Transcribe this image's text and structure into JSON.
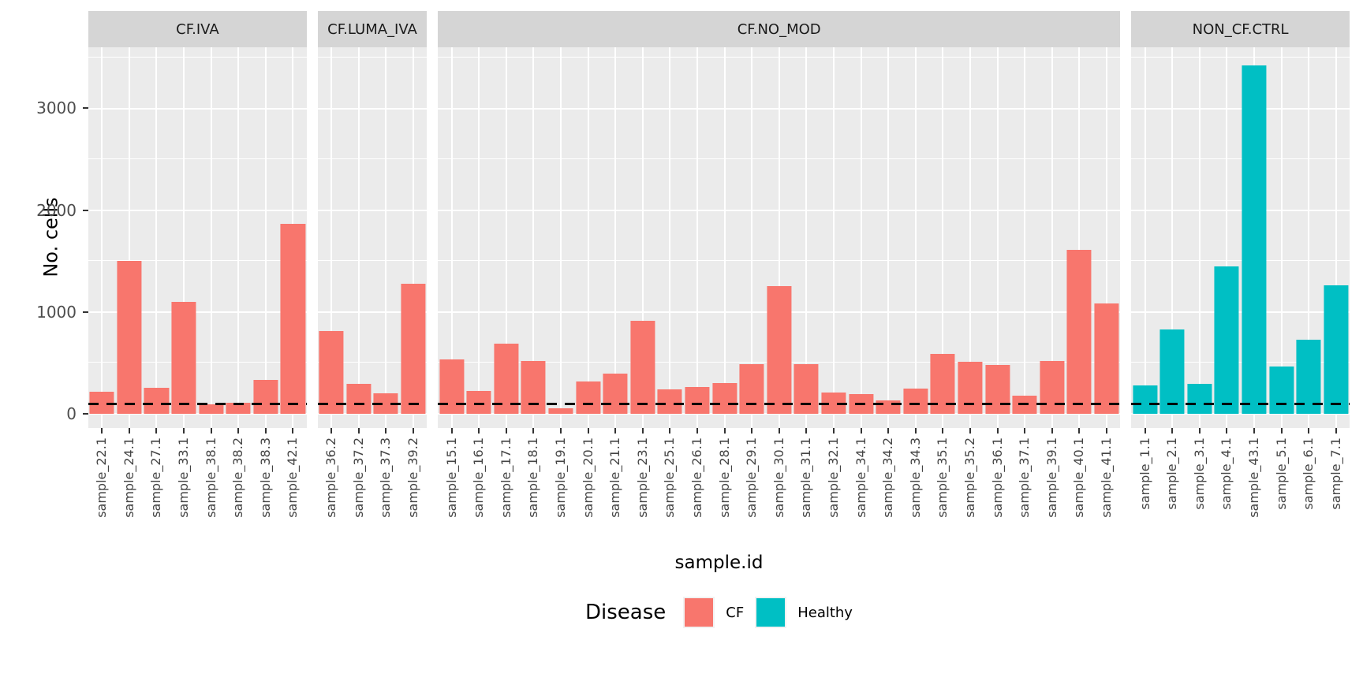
{
  "y_axis": {
    "title": "No. cells",
    "major_ticks": [
      0,
      1000,
      2000,
      3000
    ],
    "minor_ticks": [
      500,
      1500,
      2500,
      3500
    ],
    "range_min": -140,
    "range_max": 3600
  },
  "x_axis": {
    "title": "sample.id"
  },
  "reference_line": {
    "value": 100,
    "style": "dashed",
    "color": "#000000"
  },
  "legend": {
    "title": "Disease",
    "items": [
      {
        "label": "CF",
        "color": "#F8766D"
      },
      {
        "label": "Healthy",
        "color": "#00BFC4"
      }
    ]
  },
  "colors": {
    "panel_bg": "#ebebeb",
    "strip_bg": "#d5d5d5",
    "grid": "#ffffff"
  },
  "chart_data": {
    "type": "bar",
    "title": "",
    "xlabel": "sample.id",
    "ylabel": "No. cells",
    "ylim": [
      -140,
      3600
    ],
    "grid": true,
    "legend_position": "bottom",
    "hline_dashed_at": 100,
    "facets": [
      {
        "label": "CF.IVA",
        "group": "CF",
        "color": "#F8766D",
        "categories": [
          "sample_22.1",
          "sample_24.1",
          "sample_27.1",
          "sample_33.1",
          "sample_38.1",
          "sample_38.2",
          "sample_38.3",
          "sample_42.1"
        ],
        "values": [
          220,
          1500,
          255,
          1100,
          90,
          110,
          335,
          1865
        ]
      },
      {
        "label": "CF.LUMA_IVA",
        "group": "CF",
        "color": "#F8766D",
        "categories": [
          "sample_36.2",
          "sample_37.2",
          "sample_37.3",
          "sample_39.2"
        ],
        "values": [
          815,
          295,
          200,
          1280
        ]
      },
      {
        "label": "CF.NO_MOD",
        "group": "CF",
        "color": "#F8766D",
        "categories": [
          "sample_15.1",
          "sample_16.1",
          "sample_17.1",
          "sample_18.1",
          "sample_19.1",
          "sample_20.1",
          "sample_21.1",
          "sample_23.1",
          "sample_25.1",
          "sample_26.1",
          "sample_28.1",
          "sample_29.1",
          "sample_30.1",
          "sample_31.1",
          "sample_32.1",
          "sample_34.1",
          "sample_34.2",
          "sample_34.3",
          "sample_35.1",
          "sample_35.2",
          "sample_36.1",
          "sample_37.1",
          "sample_39.1",
          "sample_40.1",
          "sample_41.1"
        ],
        "values": [
          535,
          225,
          685,
          520,
          50,
          320,
          395,
          910,
          240,
          265,
          300,
          490,
          1255,
          490,
          205,
          195,
          135,
          250,
          590,
          510,
          480,
          180,
          515,
          1610,
          1085
        ]
      },
      {
        "label": "NON_CF.CTRL",
        "group": "Healthy",
        "color": "#00BFC4",
        "categories": [
          "sample_1.1",
          "sample_2.1",
          "sample_3.1",
          "sample_4.1",
          "sample_43.1",
          "sample_5.1",
          "sample_6.1",
          "sample_7.1"
        ],
        "values": [
          275,
          830,
          290,
          1445,
          3425,
          465,
          725,
          1265
        ]
      }
    ]
  }
}
